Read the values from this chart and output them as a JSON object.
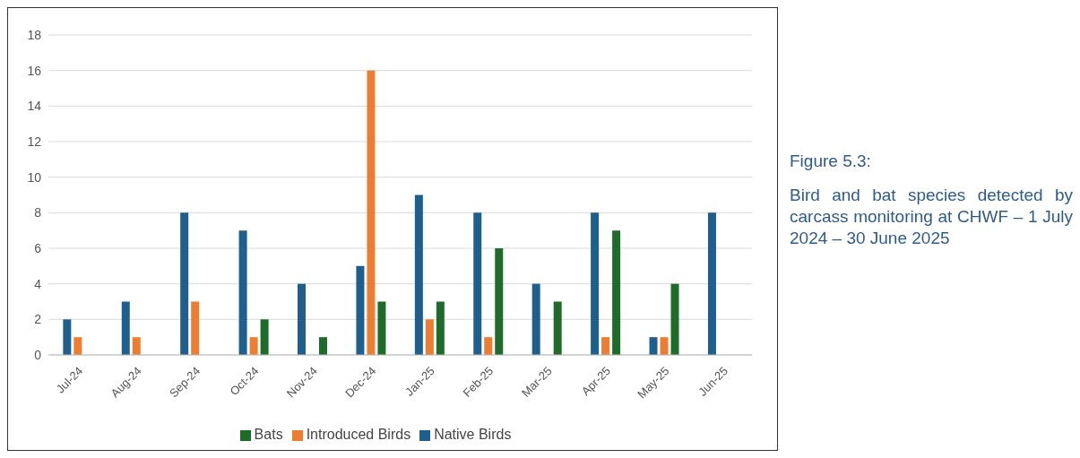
{
  "chart_data": {
    "type": "bar",
    "title": "Figure 5.3:",
    "subtitle": "Bird and bat species detected by carcass monitoring at CHWF – 1 July 2024 – 30 June 2025",
    "categories": [
      "Jul-24",
      "Aug-24",
      "Sep-24",
      "Oct-24",
      "Nov-24",
      "Dec-24",
      "Jan-25",
      "Feb-25",
      "Mar-25",
      "Apr-25",
      "May-25",
      "Jun-25"
    ],
    "series": [
      {
        "name": "Native Birds",
        "color": "#1f5f8e",
        "values": [
          2,
          3,
          8,
          7,
          4,
          5,
          9,
          8,
          4,
          8,
          1,
          8
        ]
      },
      {
        "name": "Introduced Birds",
        "color": "#ed7d31",
        "values": [
          1,
          1,
          3,
          1,
          null,
          16,
          2,
          1,
          null,
          1,
          1,
          null
        ]
      },
      {
        "name": "Bats",
        "color": "#1e6b2a",
        "values": [
          null,
          null,
          null,
          2,
          1,
          3,
          3,
          6,
          3,
          7,
          4,
          null
        ]
      }
    ],
    "ylim": [
      0,
      18
    ],
    "yticks": [
      0,
      2,
      4,
      6,
      8,
      10,
      12,
      14,
      16,
      18
    ],
    "grid": "y",
    "legend": "bottom"
  }
}
